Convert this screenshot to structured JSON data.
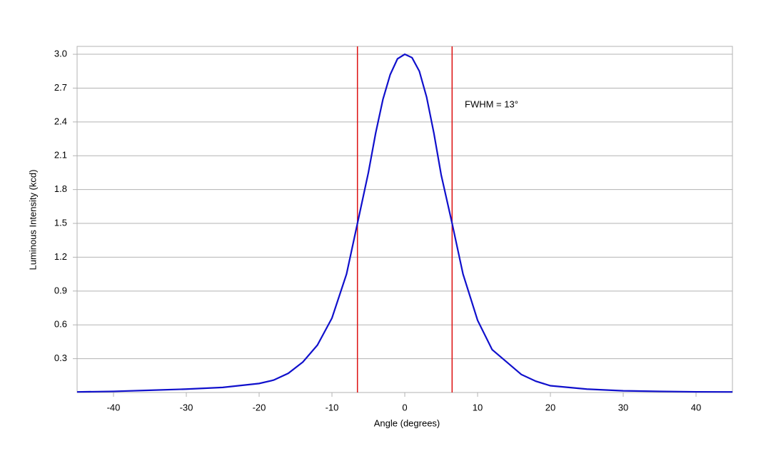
{
  "chart_data": {
    "type": "line",
    "x_label": "Angle (degrees)",
    "y_label": "Luminous Intensity (kcd)",
    "annotation": "FWHM = 13°",
    "x": [
      -45,
      -40,
      -35,
      -30,
      -25,
      -20,
      -18,
      -16,
      -14,
      -12,
      -10,
      -8,
      -6.5,
      -5,
      -4,
      -3,
      -2,
      -1,
      0,
      1,
      2,
      3,
      4,
      5,
      6.5,
      8,
      10,
      12,
      14,
      16,
      18,
      20,
      25,
      30,
      35,
      40,
      45
    ],
    "values": [
      0.005,
      0.01,
      0.02,
      0.03,
      0.045,
      0.08,
      0.11,
      0.17,
      0.27,
      0.42,
      0.66,
      1.05,
      1.5,
      1.95,
      2.3,
      2.6,
      2.82,
      2.96,
      3.0,
      2.97,
      2.85,
      2.62,
      2.3,
      1.93,
      1.5,
      1.05,
      0.64,
      0.38,
      0.27,
      0.16,
      0.1,
      0.06,
      0.03,
      0.015,
      0.01,
      0.006,
      0.005
    ],
    "color": "#1010cc",
    "vlines": [
      -6.5,
      6.5
    ],
    "vline_color": "#dd1111",
    "xlim": [
      -45,
      45
    ],
    "ylim": [
      0,
      3.07
    ],
    "xticks": [
      -40,
      -30,
      -20,
      -10,
      0,
      10,
      20,
      30,
      40
    ],
    "yticks": [
      0.3,
      0.6,
      0.9,
      1.2,
      1.5,
      1.8,
      2.1,
      2.4,
      2.7,
      {
        "value": 3,
        "label": "3.0"
      }
    ],
    "grid": true
  }
}
